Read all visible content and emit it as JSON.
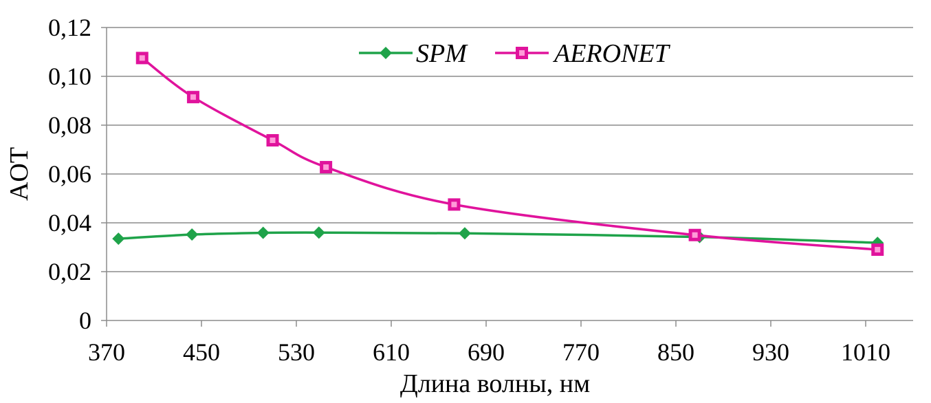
{
  "chart_data": {
    "type": "line",
    "title": "",
    "xlabel": "Длина волны, нм",
    "ylabel": "AOT",
    "xlim": [
      370,
      1050
    ],
    "ylim": [
      0,
      0.12
    ],
    "x_ticks": [
      370,
      450,
      530,
      610,
      690,
      770,
      850,
      930,
      1010
    ],
    "x_tick_labels": [
      "370",
      "450",
      "530",
      "610",
      "690",
      "770",
      "850",
      "930",
      "1010"
    ],
    "y_ticks": [
      0,
      0.02,
      0.04,
      0.06,
      0.08,
      0.1,
      0.12
    ],
    "y_tick_labels": [
      "0",
      "0,02",
      "0,04",
      "0,06",
      "0,08",
      "0,10",
      "0,12"
    ],
    "grid": "horizontal",
    "legend_position": "top-center",
    "series": [
      {
        "name": "SPM",
        "color": "#1fa34a",
        "marker": "diamond",
        "x": [
          380,
          442,
          502,
          549,
          672,
          870,
          1020
        ],
        "y": [
          0.0335,
          0.0352,
          0.0359,
          0.036,
          0.0357,
          0.0342,
          0.0318
        ]
      },
      {
        "name": "AERONET",
        "color": "#e0139c",
        "marker": "square",
        "x": [
          400,
          443,
          510,
          555,
          663,
          866,
          1020
        ],
        "y": [
          0.1075,
          0.0915,
          0.0738,
          0.0628,
          0.0475,
          0.035,
          0.029
        ]
      }
    ]
  }
}
